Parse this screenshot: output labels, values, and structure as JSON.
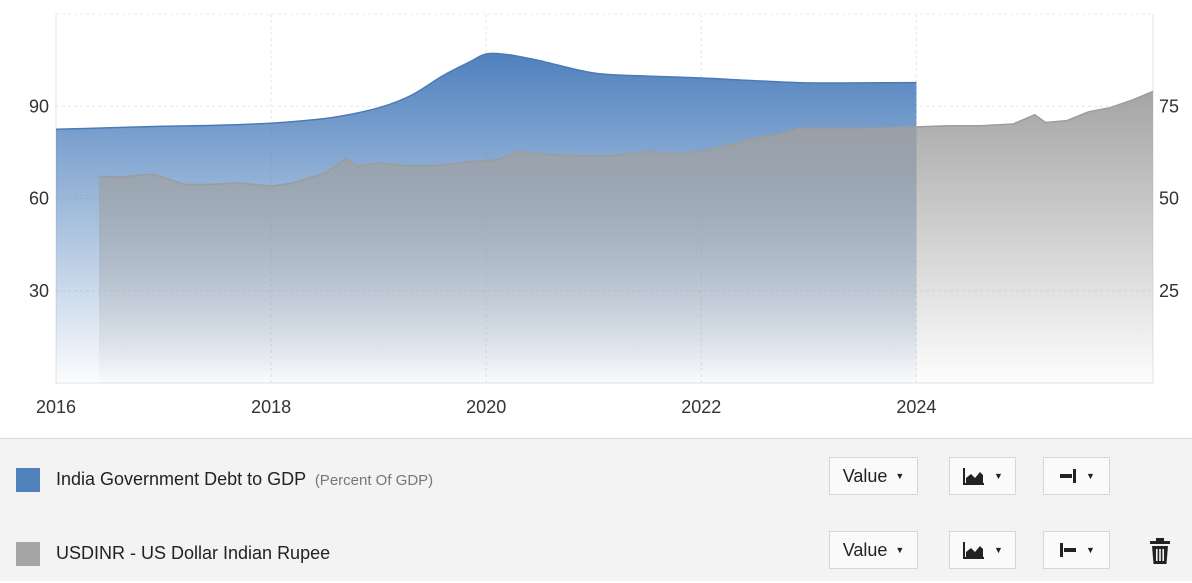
{
  "chart_data": {
    "type": "area",
    "x_ticks": [
      "2016",
      "2018",
      "2020",
      "2022",
      "2024"
    ],
    "xlim": [
      2016,
      2026.2
    ],
    "grid": true,
    "y_left": {
      "ticks": [
        "30",
        "60",
        "90"
      ],
      "range": [
        0,
        120
      ]
    },
    "y_right": {
      "ticks": [
        "25",
        "50",
        "75"
      ],
      "range": [
        0,
        100
      ]
    },
    "series": [
      {
        "name": "India Government Debt to GDP",
        "unit": "(Percent Of GDP)",
        "axis": "left",
        "color": "#4f81bd",
        "x": [
          2016.0,
          2016.5,
          2017.0,
          2017.5,
          2018.0,
          2018.3,
          2018.6,
          2019.0,
          2019.3,
          2019.6,
          2019.85,
          2020.0,
          2020.2,
          2020.5,
          2021.0,
          2021.5,
          2022.0,
          2022.5,
          2023.0,
          2023.5,
          2024.0
        ],
        "values": [
          82.5,
          83.0,
          83.5,
          83.8,
          84.5,
          85.3,
          86.5,
          89.5,
          93.5,
          100.0,
          104.5,
          107.0,
          106.8,
          104.8,
          100.8,
          99.8,
          99.2,
          98.3,
          97.6,
          97.6,
          97.7
        ]
      },
      {
        "name": "USDINR - US Dollar Indian Rupee",
        "axis": "right",
        "color": "#a6a6a6",
        "x": [
          2016.4,
          2016.6,
          2016.9,
          2017.2,
          2017.4,
          2017.7,
          2018.0,
          2018.2,
          2018.5,
          2018.7,
          2018.8,
          2019.0,
          2019.3,
          2019.5,
          2019.8,
          2020.1,
          2020.3,
          2020.6,
          2020.9,
          2021.2,
          2021.5,
          2021.8,
          2022.0,
          2022.2,
          2022.5,
          2022.7,
          2022.9,
          2023.2,
          2023.5,
          2023.8,
          2024.0,
          2024.3,
          2024.6,
          2024.9,
          2025.1,
          2025.2,
          2025.4,
          2025.6,
          2025.8,
          2026.0,
          2026.2
        ],
        "values": [
          56.0,
          55.8,
          56.6,
          53.8,
          53.8,
          54.2,
          53.3,
          54.2,
          56.8,
          60.8,
          58.8,
          59.6,
          58.8,
          58.8,
          59.8,
          60.5,
          62.8,
          61.8,
          61.6,
          61.6,
          62.8,
          62.0,
          62.9,
          64.0,
          66.3,
          67.2,
          69.0,
          69.0,
          69.0,
          69.2,
          69.4,
          69.7,
          69.7,
          70.2,
          72.7,
          70.6,
          71.1,
          73.5,
          74.6,
          76.6,
          79.0
        ]
      }
    ]
  },
  "legend": [
    {
      "name": "India Government Debt to GDP",
      "unit": "(Percent Of GDP)",
      "color": "#4f81bd",
      "view_label": "Value"
    },
    {
      "name": "USDINR - US Dollar Indian Rupee",
      "unit": "",
      "color": "#a6a6a6",
      "view_label": "Value"
    }
  ],
  "controls": {
    "chart_type_icon": "area-chart-icon",
    "axis_left_icon": "axis-left-icon",
    "axis_right_icon": "axis-right-icon",
    "delete_icon": "trash-icon"
  }
}
